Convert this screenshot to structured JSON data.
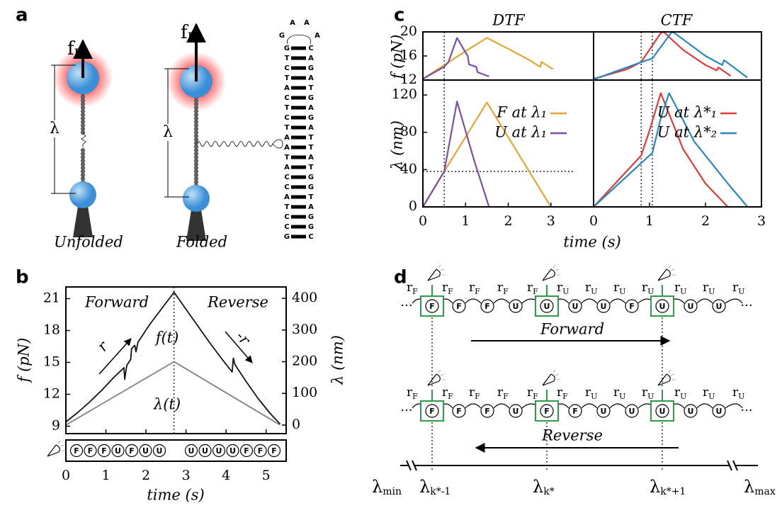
{
  "panel_labels": [
    "a",
    "b",
    "c",
    "d"
  ],
  "panel_a": {
    "force_labels": [
      {
        "base": "f",
        "sub": "U"
      },
      {
        "base": "f",
        "sub": "F"
      }
    ],
    "extension_label": "λ",
    "captions": [
      "Unfolded",
      "Folded"
    ],
    "hairpin": {
      "loop": [
        "A",
        "A",
        "G",
        "A"
      ],
      "pairs": [
        [
          "G",
          "C"
        ],
        [
          "T",
          "A"
        ],
        [
          "C",
          "G"
        ],
        [
          "T",
          "A"
        ],
        [
          "A",
          "T"
        ],
        [
          "C",
          "G"
        ],
        [
          "T",
          "A"
        ],
        [
          "C",
          "G"
        ],
        [
          "T",
          "A"
        ],
        [
          "A",
          "T"
        ],
        [
          "A",
          "T"
        ],
        [
          "T",
          "A"
        ],
        [
          "A",
          "T"
        ],
        [
          "C",
          "G"
        ],
        [
          "C",
          "G"
        ],
        [
          "A",
          "T"
        ],
        [
          "T",
          "A"
        ],
        [
          "C",
          "G"
        ],
        [
          "C",
          "G"
        ],
        [
          "G",
          "C"
        ]
      ]
    }
  },
  "chart_data": [
    {
      "type": "line",
      "xlabel": "time (s)",
      "ylabel": "f (pN)",
      "y2label": "λ (nm)",
      "xlim": [
        0,
        5.5
      ],
      "xticks": [
        0,
        1,
        2,
        3,
        4,
        5
      ],
      "ylim": [
        8.3,
        22.1
      ],
      "yticks": [
        9,
        12,
        15,
        18,
        21
      ],
      "y2lim": [
        -27,
        436
      ],
      "y2ticks": [
        0,
        100,
        200,
        300,
        400
      ],
      "series": [
        {
          "name": "f(t)",
          "color": "#111111",
          "x": [
            0,
            0.3,
            0.6,
            0.9,
            1.2,
            1.45,
            1.47,
            1.52,
            1.62,
            1.64,
            1.72,
            1.75,
            1.8,
            2.1,
            2.4,
            2.7,
            3.0,
            3.3,
            3.6,
            3.9,
            4.15,
            4.18,
            4.22,
            4.5,
            4.8,
            5.1,
            5.35
          ],
          "values": [
            9.4,
            10.3,
            11.3,
            12.4,
            13.6,
            14.5,
            13.4,
            14.7,
            15.3,
            16.3,
            16.6,
            16.0,
            16.9,
            18.6,
            20.1,
            21.6,
            20.0,
            18.4,
            16.8,
            15.3,
            14.1,
            15.4,
            14.8,
            13.2,
            11.6,
            10.2,
            9.2
          ]
        },
        {
          "name": "λ(t)",
          "color": "#808080",
          "axis": "y2",
          "x": [
            0,
            2.7,
            5.35
          ],
          "values": [
            0,
            200,
            0
          ]
        }
      ],
      "annotations": [
        "Forward",
        "Reverse",
        "r",
        "-r"
      ],
      "vlines": [
        2.7
      ],
      "states": [
        "F",
        "F",
        "F",
        "U",
        "F",
        "U",
        "U",
        "U",
        "U",
        "U",
        "U",
        "F",
        "F",
        "F"
      ]
    },
    {
      "type": "line",
      "title": "DTF",
      "ylabel": "f (pN)",
      "xlim": [
        0,
        4
      ],
      "ylim": [
        12,
        20
      ],
      "yticks": [
        12,
        16,
        20
      ],
      "vlines": [
        0.5
      ],
      "series": [
        {
          "color": "#e6a532",
          "x": [
            0,
            0.5,
            1.0,
            1.5,
            2.0,
            2.5,
            2.75,
            2.78,
            3.05
          ],
          "values": [
            12.2,
            14.5,
            16.8,
            19.0,
            17.2,
            15.3,
            14.2,
            15.0,
            13.8
          ]
        },
        {
          "color": "#7b4fa6",
          "x": [
            0,
            0.5,
            0.6,
            0.8,
            0.95,
            1.05,
            1.08,
            1.25,
            1.28,
            1.55
          ],
          "values": [
            12.2,
            14.2,
            15.0,
            19.0,
            17.2,
            16.0,
            14.6,
            14.2,
            13.3,
            12.6
          ]
        }
      ]
    },
    {
      "type": "line",
      "title": "CTF",
      "xlim": [
        0,
        3
      ],
      "ylim": [
        12,
        20
      ],
      "vlines": [
        0.85,
        1.05
      ],
      "series": [
        {
          "color": "#e03a3a",
          "x": [
            0,
            0.6,
            0.85,
            1.2,
            1.25,
            1.6,
            2.0,
            2.2,
            2.23,
            2.45
          ],
          "values": [
            12.2,
            13.8,
            15.0,
            19.8,
            20.0,
            17.0,
            14.5,
            13.6,
            14.1,
            12.7
          ]
        },
        {
          "color": "#2a86c0",
          "x": [
            0,
            0.8,
            1.05,
            1.4,
            1.45,
            2.0,
            2.3,
            2.33,
            2.75
          ],
          "values": [
            12.1,
            14.8,
            15.6,
            20.0,
            19.8,
            16.0,
            14.5,
            15.3,
            12.4
          ]
        }
      ]
    },
    {
      "type": "line",
      "ylabel": "λ (nm)",
      "xlabel": "time (s)",
      "xlim": [
        0,
        4
      ],
      "xticks": [
        0,
        1,
        2,
        3
      ],
      "ylim": [
        0,
        136
      ],
      "yticks": [
        0,
        40,
        80,
        120
      ],
      "vlines": [
        0.5
      ],
      "hlines": [
        38
      ],
      "series": [
        {
          "name": "F at λ₁",
          "color": "#e6a532",
          "x": [
            0,
            0.5,
            1.0,
            1.5,
            2.25,
            3.0
          ],
          "values": [
            0,
            38,
            75,
            112,
            56,
            0
          ]
        },
        {
          "name": "U at λ₁",
          "color": "#7b4fa6",
          "x": [
            0,
            0.5,
            0.8,
            1.2,
            1.55
          ],
          "values": [
            0,
            38,
            113,
            50,
            0
          ]
        }
      ]
    },
    {
      "type": "line",
      "xlim": [
        0,
        3
      ],
      "xticks": [
        0,
        1,
        2,
        3
      ],
      "ylim": [
        0,
        136
      ],
      "vlines": [
        0.85,
        1.05
      ],
      "series": [
        {
          "name": "U at λ*₁",
          "color": "#e03a3a",
          "x": [
            0,
            0.85,
            1.0,
            1.2,
            1.6,
            2.0,
            2.4
          ],
          "values": [
            0,
            55,
            82,
            122,
            62,
            25,
            0
          ]
        },
        {
          "name": "U at λ*₂",
          "color": "#2a86c0",
          "x": [
            0,
            1.05,
            1.2,
            1.35,
            1.8,
            2.4,
            2.75
          ],
          "values": [
            0,
            58,
            95,
            122,
            70,
            25,
            0
          ]
        }
      ]
    }
  ],
  "panel_d": {
    "rate_symbol": "r",
    "ellipsis": "···",
    "rows": [
      {
        "states": [
          "F",
          "F",
          "F",
          "U",
          "U",
          "U",
          "U",
          "F",
          "U",
          "U",
          "U"
        ],
        "rates": [
          "F",
          "F",
          "F",
          "F",
          "F",
          "U",
          "U",
          "U",
          "U",
          "U",
          "U",
          "U"
        ]
      },
      {
        "states": [
          "F",
          "F",
          "F",
          "U",
          "F",
          "F",
          "U",
          "U",
          "U",
          "U",
          "U"
        ],
        "rates": [
          "F",
          "F",
          "F",
          "F",
          "F",
          "F",
          "U",
          "U",
          "U",
          "U",
          "U",
          "U"
        ]
      }
    ],
    "arrows": [
      "Forward",
      "Reverse"
    ],
    "lambda_labels": [
      {
        "base": "λ",
        "sub": "min"
      },
      {
        "base": "λ",
        "sub": "k*-1"
      },
      {
        "base": "λ",
        "sub": "k*"
      },
      {
        "base": "λ",
        "sub": "k*+1"
      },
      {
        "base": "λ",
        "sub": "max"
      }
    ]
  }
}
